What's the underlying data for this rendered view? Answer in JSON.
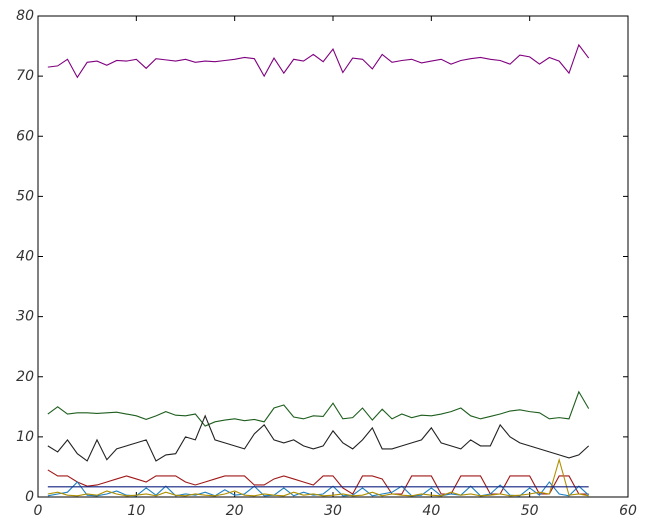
{
  "chart_data": {
    "type": "line",
    "x": [
      1,
      2,
      3,
      4,
      5,
      6,
      7,
      8,
      9,
      10,
      11,
      12,
      13,
      14,
      15,
      16,
      17,
      18,
      19,
      20,
      21,
      22,
      23,
      24,
      25,
      26,
      27,
      28,
      29,
      30,
      31,
      32,
      33,
      34,
      35,
      36,
      37,
      38,
      39,
      40,
      41,
      42,
      43,
      44,
      45,
      46,
      47,
      48,
      49,
      50,
      51,
      52,
      53,
      54,
      55,
      56
    ],
    "series": [
      {
        "color": "#800080",
        "values": [
          71.5,
          71.7,
          72.8,
          69.8,
          72.3,
          72.5,
          71.8,
          72.6,
          72.5,
          72.8,
          71.3,
          72.9,
          72.7,
          72.5,
          72.8,
          72.3,
          72.5,
          72.4,
          72.6,
          72.8,
          73.1,
          72.9,
          70.0,
          73.0,
          70.5,
          72.8,
          72.5,
          73.6,
          72.4,
          74.5,
          70.6,
          73.0,
          72.8,
          71.2,
          73.6,
          72.3,
          72.6,
          72.8,
          72.2,
          72.5,
          72.8,
          72.0,
          72.6,
          72.9,
          73.1,
          72.8,
          72.6,
          72.0,
          73.5,
          73.2,
          72.0,
          73.1,
          72.5,
          70.5,
          75.2,
          73.0
        ]
      },
      {
        "color": "#1e5e1e",
        "values": [
          13.8,
          15.0,
          13.8,
          14.0,
          14.0,
          13.9,
          14.0,
          14.1,
          13.8,
          13.5,
          12.9,
          13.5,
          14.2,
          13.6,
          13.5,
          13.8,
          11.8,
          12.5,
          12.8,
          13.0,
          12.7,
          12.9,
          12.5,
          14.8,
          15.3,
          13.3,
          13.0,
          13.5,
          13.4,
          15.6,
          13.0,
          13.2,
          14.8,
          12.8,
          14.6,
          13.0,
          13.8,
          13.2,
          13.6,
          13.5,
          13.8,
          14.2,
          14.8,
          13.5,
          13.0,
          13.4,
          13.8,
          14.3,
          14.5,
          14.2,
          14.0,
          13.0,
          13.2,
          13.0,
          17.5,
          14.7
        ]
      },
      {
        "color": "#222222",
        "values": [
          8.5,
          7.5,
          9.5,
          7.2,
          6.0,
          9.5,
          6.2,
          8.0,
          8.5,
          9.0,
          9.5,
          6.0,
          7.0,
          7.2,
          10.0,
          9.5,
          13.5,
          9.5,
          9.0,
          8.5,
          8.0,
          10.5,
          12.0,
          9.5,
          9.0,
          9.5,
          8.5,
          8.0,
          8.5,
          11.0,
          9.0,
          8.0,
          9.5,
          11.5,
          8.0,
          8.0,
          8.5,
          9.0,
          9.5,
          11.5,
          9.0,
          8.5,
          8.0,
          9.5,
          8.5,
          8.5,
          12.0,
          10.0,
          9.0,
          8.5,
          8.0,
          7.5,
          7.0,
          6.5,
          7.0,
          8.5
        ]
      },
      {
        "color": "#a01818",
        "values": [
          4.5,
          3.5,
          3.5,
          2.5,
          1.8,
          2.0,
          2.5,
          3.0,
          3.5,
          3.0,
          2.5,
          3.5,
          3.5,
          3.5,
          2.5,
          2.0,
          2.5,
          3.0,
          3.5,
          3.5,
          3.5,
          2.0,
          2.0,
          3.0,
          3.5,
          3.0,
          2.5,
          2.0,
          3.5,
          3.5,
          1.5,
          0.5,
          3.5,
          3.5,
          3.0,
          0.5,
          0.5,
          3.5,
          3.5,
          3.5,
          0.5,
          0.5,
          3.5,
          3.5,
          3.5,
          0.5,
          0.5,
          3.5,
          3.5,
          3.5,
          0.5,
          0.5,
          3.5,
          3.5,
          0.5,
          0.5
        ]
      },
      {
        "color": "#2080c0",
        "values": [
          0.2,
          0.5,
          0.8,
          2.5,
          0.3,
          0.2,
          0.5,
          1.0,
          0.3,
          0.2,
          1.5,
          0.3,
          1.8,
          0.2,
          0.5,
          0.3,
          0.8,
          0.2,
          1.2,
          0.3,
          0.5,
          1.8,
          0.2,
          0.3,
          1.5,
          0.2,
          0.8,
          0.3,
          0.5,
          1.8,
          0.2,
          0.3,
          1.5,
          0.2,
          0.5,
          0.8,
          1.8,
          0.2,
          0.3,
          1.5,
          0.2,
          0.5,
          0.3,
          1.8,
          0.2,
          0.5,
          2.0,
          0.3,
          0.2,
          1.5,
          0.3,
          2.5,
          0.5,
          0.2,
          1.8,
          0.3
        ]
      },
      {
        "color": "#b09000",
        "values": [
          0.5,
          0.8,
          0.3,
          0.2,
          0.5,
          0.3,
          1.0,
          0.5,
          0.2,
          0.3,
          0.5,
          0.2,
          0.8,
          0.3,
          0.2,
          0.5,
          0.3,
          0.2,
          0.5,
          1.0,
          0.3,
          0.2,
          0.5,
          0.3,
          0.2,
          0.8,
          0.3,
          0.5,
          0.2,
          0.3,
          0.5,
          0.2,
          0.3,
          0.8,
          0.2,
          0.5,
          0.3,
          0.2,
          0.5,
          0.3,
          0.2,
          0.8,
          0.3,
          0.5,
          0.2,
          0.3,
          0.5,
          0.2,
          0.3,
          0.5,
          0.8,
          0.5,
          6.2,
          0.3,
          0.5,
          0.2
        ]
      },
      {
        "color": "#102080",
        "values": [
          1.7,
          1.7,
          1.7,
          1.7,
          1.7,
          1.7,
          1.7,
          1.7,
          1.7,
          1.7,
          1.7,
          1.7,
          1.7,
          1.7,
          1.7,
          1.7,
          1.7,
          1.7,
          1.7,
          1.7,
          1.7,
          1.7,
          1.7,
          1.7,
          1.7,
          1.7,
          1.7,
          1.7,
          1.7,
          1.7,
          1.7,
          1.7,
          1.7,
          1.7,
          1.7,
          1.7,
          1.7,
          1.7,
          1.7,
          1.7,
          1.7,
          1.7,
          1.7,
          1.7,
          1.7,
          1.7,
          1.7,
          1.7,
          1.7,
          1.7,
          1.7,
          1.7,
          1.7,
          1.7,
          1.7,
          1.7
        ]
      }
    ],
    "xlim": [
      0,
      60
    ],
    "xticks": [
      0,
      10,
      20,
      30,
      40,
      50,
      60
    ],
    "ylim": [
      0,
      80
    ],
    "yticks": [
      0,
      10,
      20,
      30,
      40,
      50,
      60,
      70,
      80
    ]
  }
}
